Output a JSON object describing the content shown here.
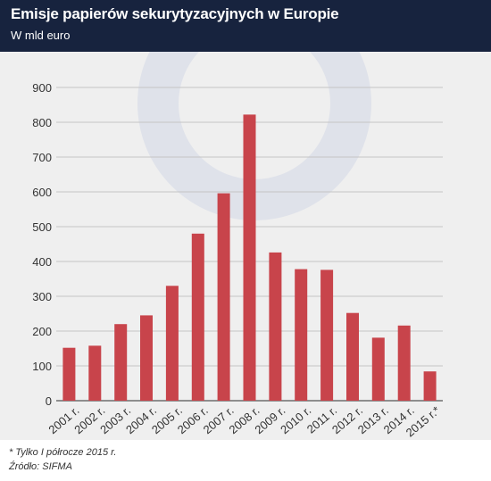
{
  "header": {
    "title": "Emisje papierów sekurytyzacyjnych w Europie",
    "subtitle": "W mld euro"
  },
  "footer": {
    "note": "* Tylko I półrocze 2015 r.",
    "source": "Źródło: SIFMA"
  },
  "colors": {
    "bar": "#c8444b",
    "header_bg": "#17233e",
    "panel_bg": "#efefef",
    "watermark": "#dfe2ea"
  },
  "chart_data": {
    "type": "bar",
    "categories": [
      "2001 r.",
      "2002 r.",
      "2003 r.",
      "2004 r.",
      "2005 r.",
      "2006 r.",
      "2007 r.",
      "2008 r.",
      "2009 r.",
      "2010 r.",
      "2011 r.",
      "2012 r.",
      "2013 r.",
      "2014 r.",
      "2015 r.*"
    ],
    "values": [
      152,
      158,
      220,
      245,
      330,
      480,
      596,
      822,
      426,
      378,
      376,
      252,
      181,
      216,
      84
    ],
    "title": "Emisje papierów sekurytyzacyjnych w Europie",
    "subtitle": "W mld euro",
    "xlabel": "",
    "ylabel": "",
    "ylim": [
      0,
      900
    ],
    "yticks": [
      0,
      100,
      200,
      300,
      400,
      500,
      600,
      700,
      800,
      900
    ],
    "grid": true,
    "legend": "none"
  }
}
